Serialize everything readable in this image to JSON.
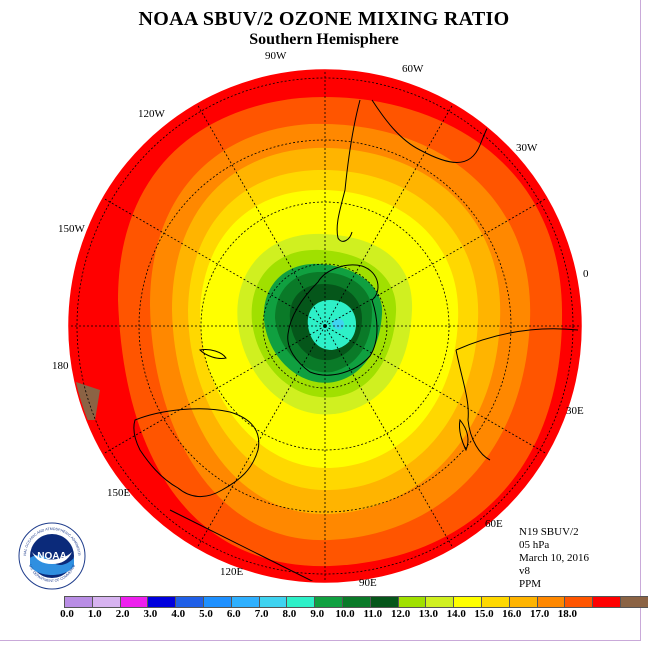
{
  "title": "NOAA SBUV/2 OZONE MIXING RATIO",
  "subtitle": "Southern Hemisphere",
  "longitude_labels": {
    "lon_90w": "90W",
    "lon_60w": "60W",
    "lon_120w": "120W",
    "lon_30w": "30W",
    "lon_150w": "150W",
    "lon_0": "0",
    "lon_180": "180",
    "lon_30e": "30E",
    "lon_150e": "150E",
    "lon_60e": "60E",
    "lon_120e": "120E",
    "lon_90e": "90E"
  },
  "info": {
    "satellite": "N19 SBUV/2",
    "level": "05 hPa",
    "date": "March 10, 2016",
    "version": "v8",
    "units": "PPM"
  },
  "colorbar": {
    "colors": [
      "#b98de5",
      "#d7b3f0",
      "#ee20ee",
      "#0000dd",
      "#1f5fe8",
      "#1e90ff",
      "#2fb0ff",
      "#3fd3f0",
      "#2ef0c8",
      "#10a040",
      "#0a7a28",
      "#05561a",
      "#a0e000",
      "#d0f020",
      "#ffff00",
      "#ffd800",
      "#ffb400",
      "#ff8800",
      "#ff5500",
      "#ff0000",
      "#8b6344"
    ],
    "labels": [
      "0.0",
      "1.0",
      "2.0",
      "3.0",
      "4.0",
      "5.0",
      "6.0",
      "7.0",
      "8.0",
      "9.0",
      "10.0",
      "11.0",
      "12.0",
      "13.0",
      "14.0",
      "15.0",
      "16.0",
      "17.0",
      "18.0"
    ]
  },
  "logo": {
    "text": "NOAA",
    "ring_text": "NATIONAL OCEANIC AND ATMOSPHERIC ADMINISTRATION",
    "ring_text_bottom": "U.S. DEPARTMENT OF COMMERCE"
  },
  "map_colors": {
    "land_outline": "#000000",
    "boundary": "#ff0000"
  }
}
